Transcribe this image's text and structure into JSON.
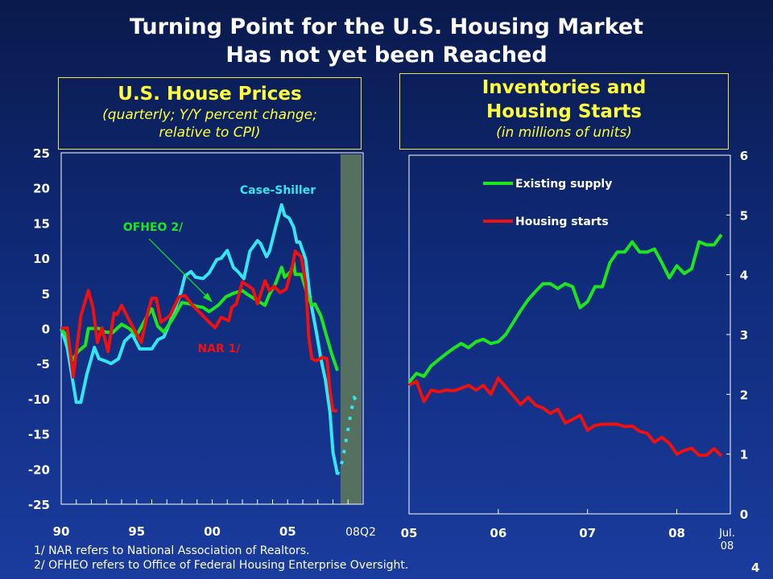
{
  "title": {
    "line1": "Turning Point for the U.S. Housing Market",
    "line2": "Has not yet been Reached"
  },
  "colors": {
    "case_shiller": "#33e6f0",
    "ofheo": "#1ee61e",
    "nar": "#ee1111",
    "shade": "#55705e",
    "panel_title": "#ffff3c",
    "axis": "#ffffff"
  },
  "footnotes": [
    "1/  NAR refers to National Association of Realtors.",
    "2/  OFHEO refers to Office of Federal Housing Enterprise Oversight."
  ],
  "page_number": "4",
  "chart_data": [
    {
      "type": "line",
      "title": "U.S. House Prices",
      "subtitle_line1": "(quarterly; Y/Y percent change;",
      "subtitle_line2": "relative to CPI)",
      "xlim": [
        1990,
        2010
      ],
      "ylim": [
        -25,
        25
      ],
      "y_ticks": [
        "25",
        "20",
        "15",
        "10",
        "5",
        "0",
        "-5",
        "-10",
        "-15",
        "-20",
        "-25"
      ],
      "x_tick_labels": [
        {
          "label": "90",
          "x": 1990
        },
        {
          "label": "95",
          "x": 1995
        },
        {
          "label": "00",
          "x": 2000
        },
        {
          "label": "05",
          "x": 2005
        },
        {
          "label": "08Q2",
          "x": 2008.5
        }
      ],
      "shaded_region": [
        2008.5,
        2010
      ],
      "annotation_arrow": {
        "label": "OFHEO 2/"
      },
      "series": [
        {
          "name": "Case-Shiller",
          "color_key": "case_shiller",
          "points": [
            [
              1990,
              0
            ],
            [
              1990.4,
              -2.7
            ],
            [
              1991,
              -10.5
            ],
            [
              1991.3,
              -10.5
            ],
            [
              1991.7,
              -6.5
            ],
            [
              1992.2,
              -2.7
            ],
            [
              1992.5,
              -4.3
            ],
            [
              1992.9,
              -4.6
            ],
            [
              1993.3,
              -5
            ],
            [
              1993.8,
              -4.3
            ],
            [
              1994.2,
              -1.8
            ],
            [
              1994.7,
              -0.8
            ],
            [
              1995.2,
              -2.9
            ],
            [
              1996,
              -2.9
            ],
            [
              1996.4,
              -1.6
            ],
            [
              1996.8,
              -1.2
            ],
            [
              1997.3,
              1.4
            ],
            [
              1997.9,
              4.9
            ],
            [
              1998.2,
              7.5
            ],
            [
              1998.6,
              8.1
            ],
            [
              1998.9,
              7.3
            ],
            [
              1999.4,
              7.1
            ],
            [
              1999.8,
              7.9
            ],
            [
              2000.3,
              9.8
            ],
            [
              2000.6,
              10
            ],
            [
              2001,
              11.1
            ],
            [
              2001.4,
              8.7
            ],
            [
              2001.7,
              8.1
            ],
            [
              2002.1,
              7.1
            ],
            [
              2002.5,
              11
            ],
            [
              2003,
              12.5
            ],
            [
              2003.2,
              12.1
            ],
            [
              2003.6,
              10.2
            ],
            [
              2003.8,
              11
            ],
            [
              2004.2,
              14.4
            ],
            [
              2004.6,
              17.6
            ],
            [
              2004.8,
              16.1
            ],
            [
              2005.1,
              15.7
            ],
            [
              2005.4,
              14.4
            ],
            [
              2005.6,
              12.3
            ],
            [
              2005.8,
              12.3
            ],
            [
              2006.2,
              9.8
            ],
            [
              2006.5,
              4.1
            ],
            [
              2006.9,
              -0.5
            ],
            [
              2007.2,
              -4.3
            ],
            [
              2007.5,
              -7.3
            ],
            [
              2007.8,
              -11.9
            ],
            [
              2008,
              -17.6
            ],
            [
              2008.3,
              -20.8
            ]
          ]
        },
        {
          "name": "Case-Shiller futures",
          "color_key": "case_shiller",
          "dashed": true,
          "points": [
            [
              2008.3,
              -20.8
            ],
            [
              2008.6,
              -19
            ],
            [
              2008.8,
              -16.8
            ],
            [
              2009.2,
              -11.9
            ],
            [
              2009.4,
              -9.8
            ],
            [
              2009.7,
              -10.7
            ]
          ]
        },
        {
          "name": "OFHEO 2/",
          "color_key": "ofheo",
          "points": [
            [
              1990,
              0
            ],
            [
              1990.4,
              -1.2
            ],
            [
              1990.7,
              -4.6
            ],
            [
              1991.1,
              -3.3
            ],
            [
              1991.6,
              -2.4
            ],
            [
              1991.8,
              0
            ],
            [
              1992.3,
              0
            ],
            [
              1992.5,
              0
            ],
            [
              1992.9,
              -0.5
            ],
            [
              1993.4,
              -0.6
            ],
            [
              1994,
              0.6
            ],
            [
              1994.5,
              0
            ],
            [
              1995,
              -1
            ],
            [
              1995.7,
              1.8
            ],
            [
              1996,
              2.8
            ],
            [
              1996.4,
              0.3
            ],
            [
              1996.8,
              -0.5
            ],
            [
              1997.4,
              1.4
            ],
            [
              1998,
              3.7
            ],
            [
              1998.5,
              3.5
            ],
            [
              1998.9,
              3.2
            ],
            [
              1999.4,
              3
            ],
            [
              1999.8,
              2.4
            ],
            [
              2000.4,
              3.3
            ],
            [
              2000.9,
              4.5
            ],
            [
              2001.4,
              5
            ],
            [
              2002,
              5.4
            ],
            [
              2002.3,
              4.9
            ],
            [
              2002.9,
              4.1
            ],
            [
              2003.5,
              3.3
            ],
            [
              2003.8,
              4.9
            ],
            [
              2004.2,
              6.4
            ],
            [
              2004.6,
              8.7
            ],
            [
              2004.8,
              7.3
            ],
            [
              2005.2,
              8.1
            ],
            [
              2005.4,
              9.4
            ],
            [
              2005.5,
              7.7
            ],
            [
              2005.9,
              7.7
            ],
            [
              2006.3,
              4.9
            ],
            [
              2006.6,
              3.3
            ],
            [
              2006.8,
              3.5
            ],
            [
              2007.2,
              1.8
            ],
            [
              2007.5,
              -0.5
            ],
            [
              2007.9,
              -3.5
            ],
            [
              2008.3,
              -6
            ]
          ]
        },
        {
          "name": "NAR 1/",
          "color_key": "nar",
          "points": [
            [
              1990,
              0
            ],
            [
              1990.4,
              0.1
            ],
            [
              1990.8,
              -6.9
            ],
            [
              1991.3,
              1.8
            ],
            [
              1991.8,
              5.4
            ],
            [
              1992.1,
              3
            ],
            [
              1992.4,
              -2
            ],
            [
              1992.7,
              0.1
            ],
            [
              1993.1,
              -3.3
            ],
            [
              1993.5,
              2.2
            ],
            [
              1993.7,
              2
            ],
            [
              1994,
              3.3
            ],
            [
              1994.4,
              1.6
            ],
            [
              1994.8,
              0
            ],
            [
              1995.3,
              -2
            ],
            [
              1995.7,
              2
            ],
            [
              1996,
              4.3
            ],
            [
              1996.3,
              4.3
            ],
            [
              1996.6,
              0.9
            ],
            [
              1997.2,
              1.8
            ],
            [
              1997.8,
              4.5
            ],
            [
              1998.2,
              4.7
            ],
            [
              1998.7,
              3.3
            ],
            [
              1999.3,
              2
            ],
            [
              1999.8,
              0.9
            ],
            [
              2000.2,
              0.1
            ],
            [
              2000.6,
              1.6
            ],
            [
              2001.1,
              1.1
            ],
            [
              2001.3,
              3
            ],
            [
              2001.6,
              3.5
            ],
            [
              2002,
              6.6
            ],
            [
              2002.3,
              6.2
            ],
            [
              2002.7,
              5.6
            ],
            [
              2003,
              3.5
            ],
            [
              2003.5,
              6.8
            ],
            [
              2003.8,
              5.4
            ],
            [
              2004.1,
              6
            ],
            [
              2004.5,
              5.1
            ],
            [
              2004.9,
              5.6
            ],
            [
              2005.3,
              8.7
            ],
            [
              2005.5,
              11
            ],
            [
              2005.9,
              10.2
            ],
            [
              2006.2,
              6.4
            ],
            [
              2006.4,
              -1.2
            ],
            [
              2006.6,
              -4.3
            ],
            [
              2006.9,
              -4.6
            ],
            [
              2007.3,
              -4.1
            ],
            [
              2007.6,
              -4.3
            ],
            [
              2007.8,
              -8.8
            ],
            [
              2008,
              -11.7
            ],
            [
              2008.3,
              -11.7
            ]
          ]
        }
      ]
    },
    {
      "type": "line",
      "title_line1": "Inventories and",
      "title_line2": "Housing Starts",
      "subtitle": "(in millions of units)",
      "x_start": "2005-01",
      "x_end": "2008-07",
      "frequency": "monthly",
      "xlim": [
        2005,
        2008.6
      ],
      "ylim": [
        0,
        6
      ],
      "y_axis_side": "right",
      "y_ticks": [
        "6",
        "5",
        "4",
        "3",
        "2",
        "1",
        "0"
      ],
      "x_tick_labels": [
        {
          "label": "05",
          "x": 2005
        },
        {
          "label": "06",
          "x": 2006
        },
        {
          "label": "07",
          "x": 2007
        },
        {
          "label": "08",
          "x": 2008
        }
      ],
      "x_end_label": [
        "Jul.",
        "08"
      ],
      "legend_position": "top-left",
      "series": [
        {
          "name": "Existing supply",
          "color_key": "ofheo",
          "values": [
            2.2,
            2.35,
            2.3,
            2.48,
            2.58,
            2.68,
            2.77,
            2.85,
            2.78,
            2.88,
            2.92,
            2.85,
            2.88,
            3.0,
            3.2,
            3.4,
            3.58,
            3.72,
            3.85,
            3.85,
            3.77,
            3.85,
            3.8,
            3.45,
            3.55,
            3.8,
            3.8,
            4.2,
            4.38,
            4.38,
            4.55,
            4.38,
            4.38,
            4.43,
            4.2,
            3.95,
            4.15,
            4.02,
            4.1,
            4.55,
            4.5,
            4.5,
            4.67
          ]
        },
        {
          "name": "Housing starts",
          "color_key": "nar",
          "values": [
            2.15,
            2.22,
            1.88,
            2.07,
            2.04,
            2.07,
            2.06,
            2.1,
            2.15,
            2.07,
            2.15,
            2.0,
            2.27,
            2.12,
            1.98,
            1.83,
            1.95,
            1.82,
            1.77,
            1.68,
            1.75,
            1.52,
            1.58,
            1.65,
            1.4,
            1.48,
            1.5,
            1.5,
            1.5,
            1.46,
            1.47,
            1.38,
            1.35,
            1.2,
            1.28,
            1.18,
            1.0,
            1.06,
            1.1,
            0.98,
            0.98,
            1.09,
            0.97
          ]
        }
      ]
    }
  ]
}
